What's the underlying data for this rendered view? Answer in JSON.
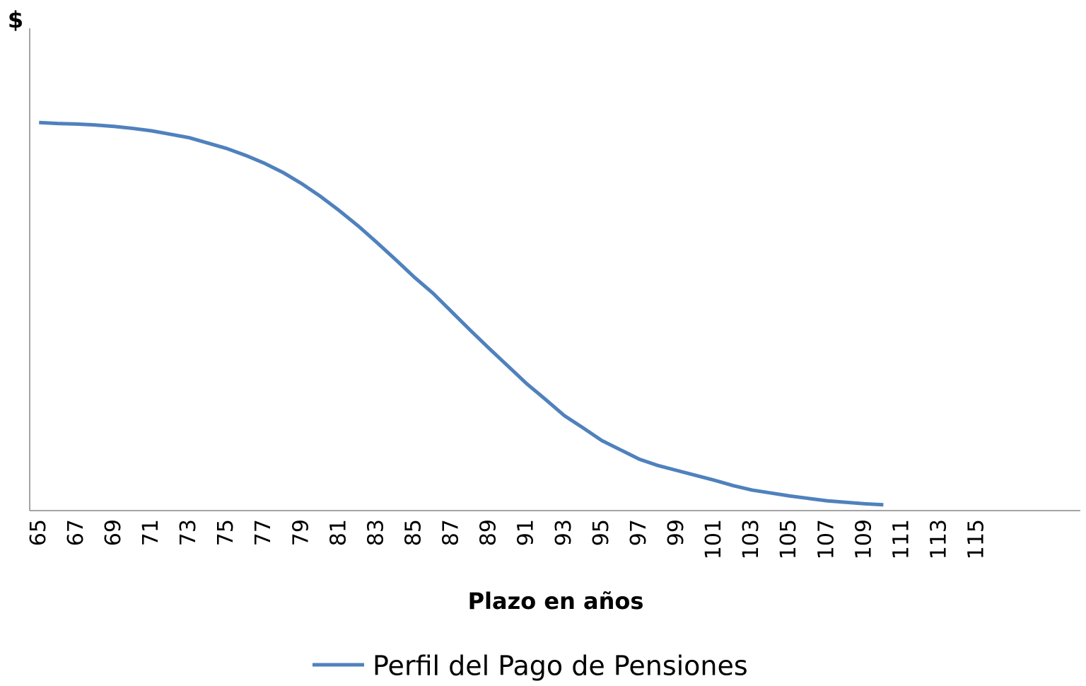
{
  "chart_data": {
    "type": "line",
    "y_label": "$",
    "x_label": "Plazo en años",
    "categories": [
      "65",
      null,
      "67",
      null,
      "69",
      null,
      "71",
      null,
      "73",
      null,
      "75",
      null,
      "77",
      null,
      "79",
      null,
      "81",
      null,
      "83",
      null,
      "85",
      null,
      "87",
      null,
      "89",
      null,
      "91",
      null,
      "93",
      null,
      "95",
      null,
      "97",
      null,
      "99",
      null,
      "101",
      null,
      "103",
      null,
      "105",
      null,
      "107",
      null,
      "109",
      null,
      "111",
      null,
      "113",
      null,
      "115",
      null,
      null,
      null,
      null,
      null
    ],
    "series": [
      {
        "name": "Perfil del Pago de Pensiones",
        "color": "#4f81bd",
        "values": [
          79.3,
          79.1,
          79.0,
          78.8,
          78.5,
          78.1,
          77.6,
          76.9,
          76.2,
          75.1,
          74.0,
          72.6,
          71.0,
          69.1,
          66.8,
          64.2,
          61.3,
          58.2,
          54.8,
          51.3,
          47.7,
          44.4,
          40.6,
          36.8,
          33.1,
          29.5,
          25.9,
          22.7,
          19.4,
          16.9,
          14.3,
          12.4,
          10.5,
          9.2,
          8.2,
          7.2,
          6.2,
          5.1,
          4.2,
          3.6,
          3.0,
          2.5,
          2.0,
          1.7,
          1.4,
          1.2,
          null,
          null,
          null,
          null,
          null,
          null,
          null,
          null,
          null,
          null
        ]
      }
    ],
    "ylim": [
      0,
      100
    ],
    "legend": "bottom"
  }
}
